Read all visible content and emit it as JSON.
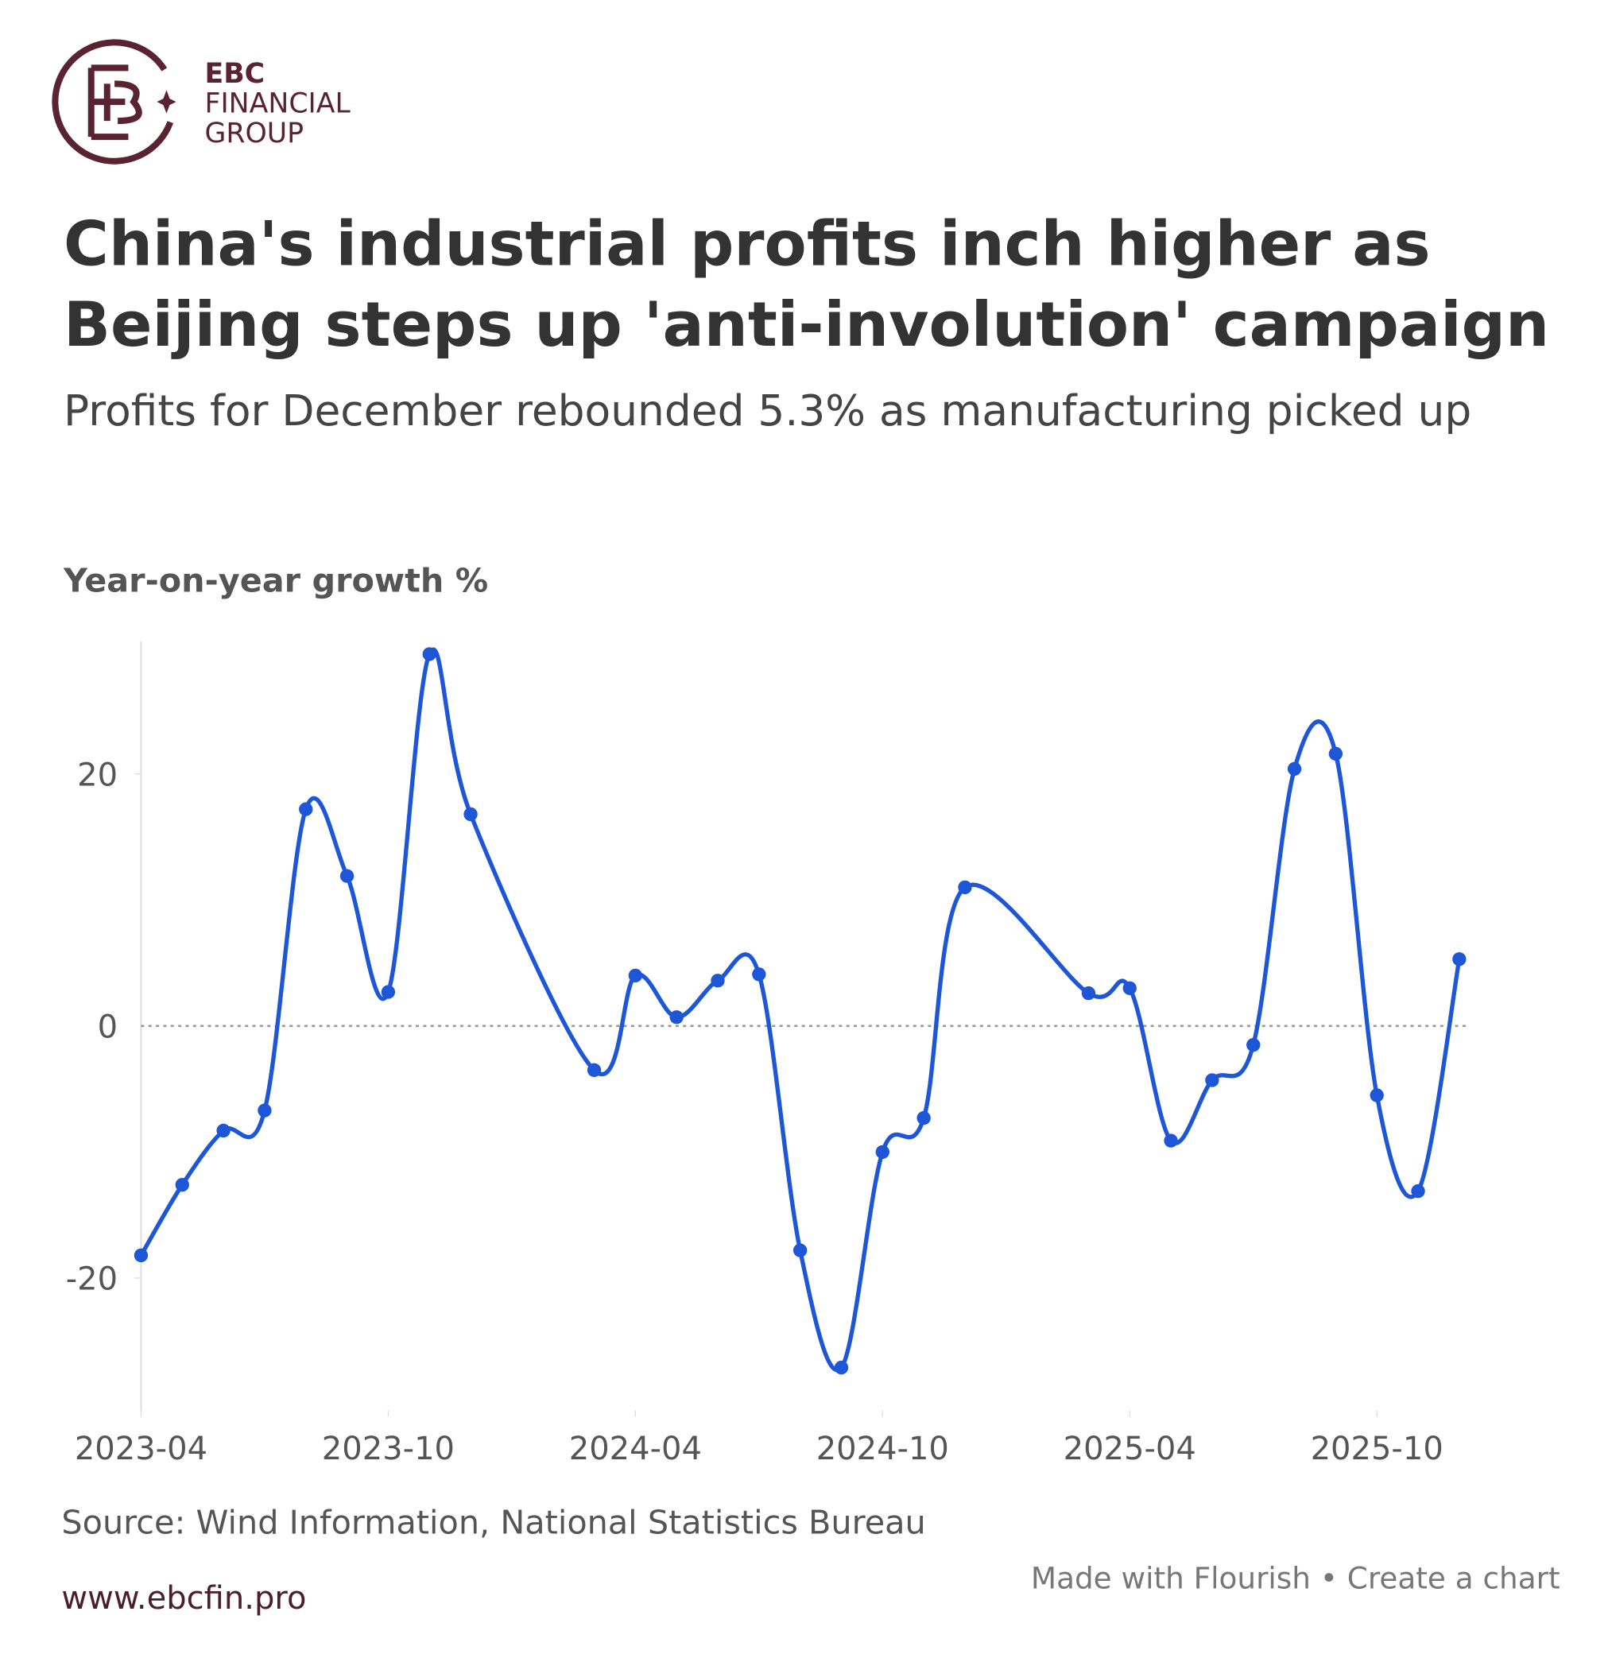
{
  "logo": {
    "line1": "EBC",
    "line2": "FINANCIAL",
    "line3": "GROUP"
  },
  "chart_data": {
    "type": "line",
    "title": "China's industrial profits inch higher as Beijing steps up 'anti-involution' campaign",
    "subtitle": "Profits for December rebounded 5.3% as manufacturing picked up",
    "y_label": "Year-on-year growth %",
    "x": [
      "2023-04",
      "2023-05",
      "2023-06",
      "2023-07",
      "2023-08",
      "2023-09",
      "2023-10",
      "2023-11",
      "2023-12",
      "2024-03",
      "2024-04",
      "2024-05",
      "2024-06",
      "2024-07",
      "2024-08",
      "2024-09",
      "2024-10",
      "2024-11",
      "2024-12",
      "2025-03",
      "2025-04",
      "2025-05",
      "2025-06",
      "2025-07",
      "2025-08",
      "2025-09",
      "2025-10",
      "2025-11",
      "2025-12"
    ],
    "series": [
      {
        "name": "Year-on-year growth %",
        "color": "#1d56d6",
        "values": [
          -18.2,
          -12.6,
          -8.3,
          -6.7,
          17.2,
          11.9,
          2.7,
          29.5,
          16.8,
          -3.5,
          4.0,
          0.7,
          3.6,
          4.1,
          -17.8,
          -27.1,
          -10.0,
          -7.3,
          11.0,
          2.6,
          3.0,
          -9.1,
          -4.3,
          -1.5,
          20.4,
          21.6,
          -5.5,
          -13.1,
          5.3
        ]
      }
    ],
    "xlim": [
      "2023-04",
      "2025-12"
    ],
    "xticks": [
      "2023-04",
      "2023-10",
      "2024-04",
      "2024-10",
      "2025-04",
      "2025-10"
    ],
    "ylim": [
      -30.5,
      30.5
    ],
    "yticks": [
      -20,
      0,
      20
    ],
    "source": "Source: Wind Information, National Statistics Bureau",
    "credit": "Made with Flourish • Create a chart",
    "website": "www.ebcfin.pro"
  }
}
